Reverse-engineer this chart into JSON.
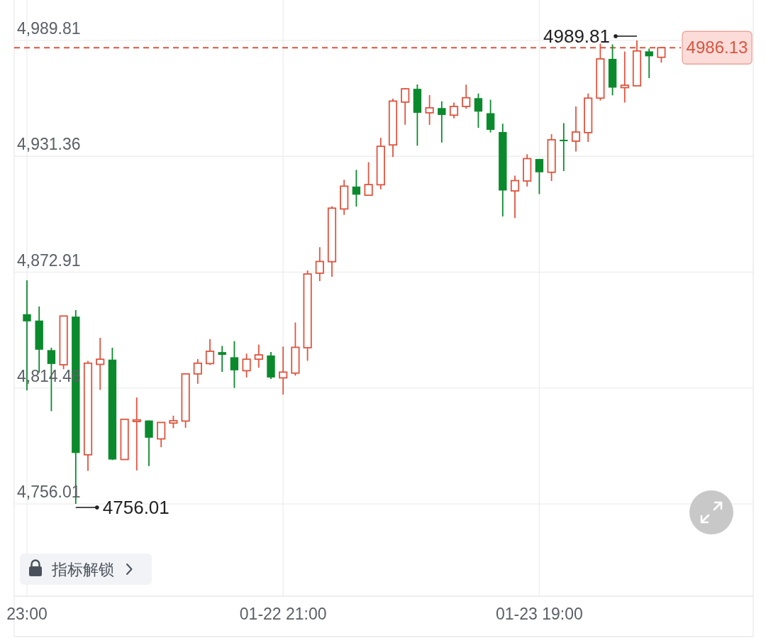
{
  "chart_data": {
    "type": "candlestick",
    "categories": [
      "23:00",
      null,
      null,
      null,
      null,
      null,
      null,
      null,
      null,
      null,
      null,
      null,
      null,
      null,
      null,
      null,
      null,
      null,
      null,
      null,
      null,
      "01-22 21:00",
      null,
      null,
      null,
      null,
      null,
      null,
      null,
      null,
      null,
      null,
      null,
      null,
      null,
      null,
      null,
      null,
      null,
      null,
      null,
      null,
      "01-23 19:00",
      null,
      null,
      null,
      null,
      null,
      null,
      null,
      null,
      null,
      null
    ],
    "ohlc": [
      [
        4851.7,
        4868.8,
        4813.3,
        4848.1
      ],
      [
        4848.5,
        4855.6,
        4822.2,
        4833.8
      ],
      [
        4833.6,
        4834.8,
        4802.8,
        4826.6
      ],
      [
        4826.2,
        4850.8,
        4824.0,
        4850.8
      ],
      [
        4850.5,
        4853.8,
        4756.01,
        4781.7
      ],
      [
        4780.8,
        4828.2,
        4772.7,
        4827.0
      ],
      [
        4826.4,
        4839.8,
        4813.5,
        4829.0
      ],
      [
        4828.8,
        4834.8,
        4778.1,
        4778.4
      ],
      [
        4778.4,
        4798.7,
        4778.4,
        4798.7
      ],
      [
        4797.6,
        4809.7,
        4772.9,
        4798.4
      ],
      [
        4798.1,
        4798.1,
        4775.1,
        4789.4
      ],
      [
        4788.8,
        4797.1,
        4784.6,
        4797.1
      ],
      [
        4796.8,
        4800.5,
        4794.2,
        4798.0
      ],
      [
        4797.8,
        4821.6,
        4794.4,
        4821.6
      ],
      [
        4821.6,
        4829.1,
        4816.6,
        4827.0
      ],
      [
        4826.8,
        4839.2,
        4826.1,
        4833.0
      ],
      [
        4832.6,
        4835.7,
        4822.6,
        4831.2
      ],
      [
        4830.0,
        4838.1,
        4814.5,
        4823.4
      ],
      [
        4823.2,
        4831.8,
        4819.8,
        4829.0
      ],
      [
        4829.0,
        4836.4,
        4824.7,
        4831.2
      ],
      [
        4830.9,
        4832.6,
        4819.0,
        4819.8
      ],
      [
        4819.6,
        4835.4,
        4811.2,
        4822.5
      ],
      [
        4822.0,
        4847.5,
        4820.7,
        4835.0
      ],
      [
        4834.8,
        4873.8,
        4828.2,
        4872.0
      ],
      [
        4872.4,
        4885.5,
        4868.4,
        4878.3
      ],
      [
        4878.2,
        4906.1,
        4870.6,
        4905.2
      ],
      [
        4904.8,
        4919.5,
        4901.8,
        4916.3
      ],
      [
        4916.1,
        4924.5,
        4906.0,
        4912.0
      ],
      [
        4911.7,
        4928.4,
        4911.7,
        4917.1
      ],
      [
        4917.0,
        4940.7,
        4914.7,
        4936.4
      ],
      [
        4937.1,
        4960.4,
        4931.0,
        4959.2
      ],
      [
        4958.7,
        4965.8,
        4947.3,
        4965.4
      ],
      [
        4965.4,
        4967.6,
        4936.7,
        4953.3
      ],
      [
        4953.3,
        4962.2,
        4947.2,
        4955.8
      ],
      [
        4955.7,
        4959.1,
        4938.3,
        4952.2
      ],
      [
        4952.1,
        4958.5,
        4950.5,
        4956.5
      ],
      [
        4956.5,
        4967.5,
        4955.3,
        4960.9
      ],
      [
        4960.7,
        4963.0,
        4945.7,
        4953.9
      ],
      [
        4953.1,
        4959.9,
        4943.4,
        4944.7
      ],
      [
        4943.6,
        4947.8,
        4901.0,
        4914.1
      ],
      [
        4913.9,
        4921.6,
        4900.2,
        4919.1
      ],
      [
        4918.9,
        4932.4,
        4916.1,
        4930.2
      ],
      [
        4930.0,
        4930.0,
        4912.3,
        4923.3
      ],
      [
        4923.3,
        4942.5,
        4918.9,
        4939.7
      ],
      [
        4939.7,
        4948.1,
        4923.9,
        4939.4
      ],
      [
        4939.0,
        4956.5,
        4933.8,
        4943.6
      ],
      [
        4943.3,
        4963.0,
        4938.6,
        4960.7
      ],
      [
        4960.7,
        4988.2,
        4959.5,
        4980.5
      ],
      [
        4980.5,
        4987.8,
        4962.1,
        4966.0
      ],
      [
        4966.0,
        4984.2,
        4958.5,
        4967.2
      ],
      [
        4966.9,
        4989.81,
        4966.9,
        4984.5
      ],
      [
        4984.3,
        4985.7,
        4970.8,
        4981.8
      ],
      [
        4981.3,
        4986.13,
        4978.6,
        4986.13
      ]
    ],
    "colors": [
      "#0b8a2d",
      "#0b8a2d",
      "#0b8a2d",
      "#e0543f",
      "#0b8a2d",
      "#e0543f",
      "#e0543f",
      "#0b8a2d",
      "#e0543f",
      "#e0543f",
      "#0b8a2d",
      "#e0543f",
      "#e0543f",
      "#e0543f",
      "#e0543f",
      "#e0543f",
      "#0b8a2d",
      "#0b8a2d",
      "#e0543f",
      "#e0543f",
      "#0b8a2d",
      "#e0543f",
      "#e0543f",
      "#e0543f",
      "#e0543f",
      "#e0543f",
      "#e0543f",
      "#0b8a2d",
      "#e0543f",
      "#e0543f",
      "#e0543f",
      "#e0543f",
      "#0b8a2d",
      "#e0543f",
      "#0b8a2d",
      "#e0543f",
      "#e0543f",
      "#0b8a2d",
      "#0b8a2d",
      "#0b8a2d",
      "#e0543f",
      "#e0543f",
      "#0b8a2d",
      "#e0543f",
      "#0b8a2d",
      "#e0543f",
      "#e0543f",
      "#e0543f",
      "#0b8a2d",
      "#e0543f",
      "#e0543f",
      "#0b8a2d",
      "#e0543f"
    ],
    "ylim": [
      4709.5,
      5010.2
    ],
    "yticks": [
      {
        "value": 4756.01,
        "label": "4,756.01"
      },
      {
        "value": 4814.46,
        "label": "4,814.46"
      },
      {
        "value": 4872.91,
        "label": "4,872.91"
      },
      {
        "value": 4931.36,
        "label": "4,931.36"
      },
      {
        "value": 4989.81,
        "label": "4,989.81"
      }
    ],
    "grid": true,
    "ref_lines": [
      {
        "axis": "y",
        "value": 4986.13,
        "label": "4986.13",
        "color": "#d9553f",
        "line_style": "dashed"
      }
    ],
    "annotations": [
      "4989.81",
      "4756.01",
      "指标解锁"
    ]
  }
}
